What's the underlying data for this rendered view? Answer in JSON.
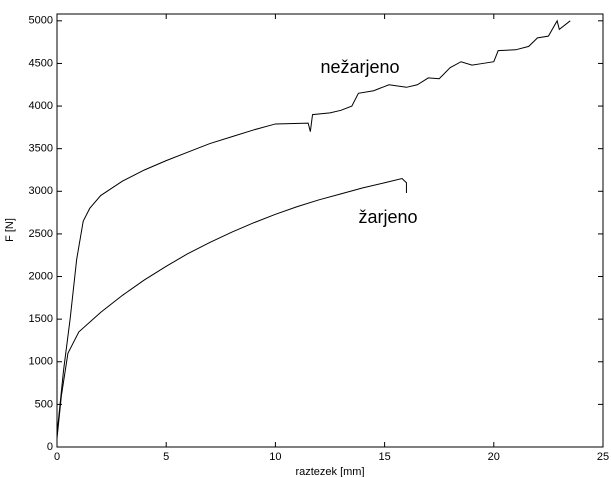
{
  "chart_data": {
    "type": "line",
    "xlabel": "raztezek [mm]",
    "ylabel": "F [N]",
    "annotations": [
      "nežarjeno",
      "žarjeno"
    ],
    "xlim": [
      0,
      25
    ],
    "xticks": [
      0,
      5,
      10,
      15,
      20,
      25
    ],
    "ylim": [
      0,
      5080
    ],
    "yticks": [
      0,
      500,
      1000,
      1500,
      2000,
      2500,
      3000,
      3500,
      4000,
      4500,
      5000
    ],
    "grid": false,
    "series": [
      {
        "name": "nežarjeno",
        "color": "#000000",
        "x": [
          0,
          0.3,
          0.6,
          0.9,
          1.2,
          1.5,
          2,
          3,
          4,
          5,
          6,
          7,
          8,
          9,
          10,
          11.5,
          11.6,
          11.7,
          12.5,
          13,
          13.5,
          13.8,
          14.5,
          15.2,
          16,
          16.5,
          17,
          17.5,
          18,
          18.5,
          19,
          19.5,
          20,
          20.2,
          21,
          21.6,
          22,
          22.5,
          22.9,
          23,
          23.5
        ],
        "values": [
          150,
          900,
          1500,
          2200,
          2650,
          2800,
          2950,
          3120,
          3250,
          3360,
          3460,
          3560,
          3640,
          3720,
          3790,
          3800,
          3700,
          3900,
          3920,
          3950,
          4000,
          4150,
          4180,
          4250,
          4220,
          4250,
          4330,
          4320,
          4450,
          4520,
          4480,
          4500,
          4520,
          4650,
          4660,
          4700,
          4800,
          4820,
          5000,
          4900,
          5000
        ]
      },
      {
        "name": "žarjeno",
        "color": "#000000",
        "x": [
          0,
          0.2,
          0.5,
          1,
          2,
          3,
          4,
          5,
          6,
          7,
          8,
          9,
          10,
          11,
          12,
          13,
          14,
          15,
          15.8,
          16,
          16
        ],
        "values": [
          100,
          600,
          1100,
          1350,
          1580,
          1780,
          1960,
          2120,
          2270,
          2400,
          2520,
          2630,
          2730,
          2820,
          2900,
          2970,
          3040,
          3100,
          3150,
          3100,
          2980
        ]
      }
    ]
  }
}
